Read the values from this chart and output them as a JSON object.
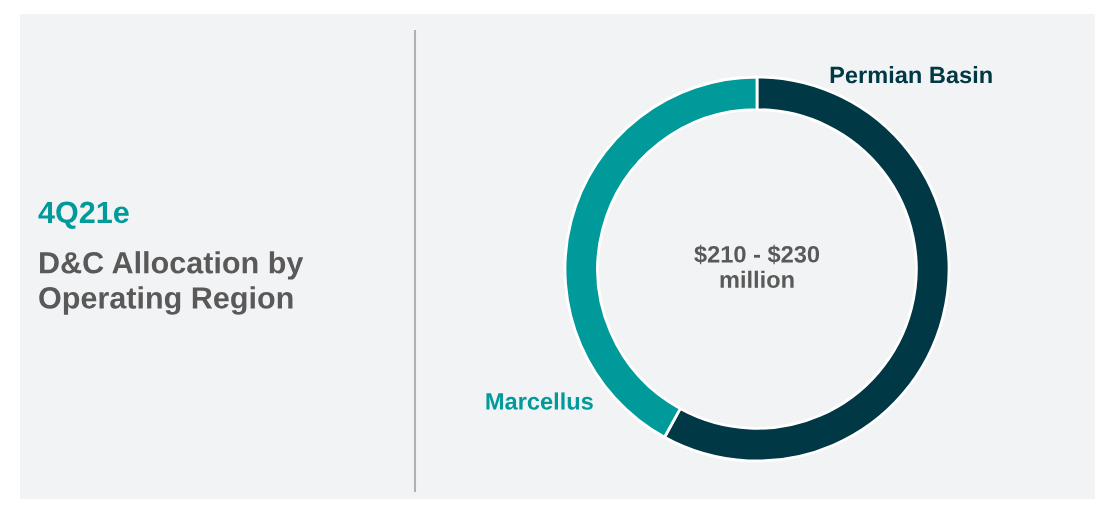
{
  "chart_data": {
    "type": "donut",
    "title": "4Q21e",
    "subtitle": "D&C Allocation by\nOperating Region",
    "categories": [
      "Permian Basin",
      "Marcellus"
    ],
    "values": [
      58,
      42
    ],
    "colors": [
      "#003845",
      "#009a9a"
    ],
    "annotations": [
      "$210 - $230\nmillion"
    ],
    "legend": false
  }
}
